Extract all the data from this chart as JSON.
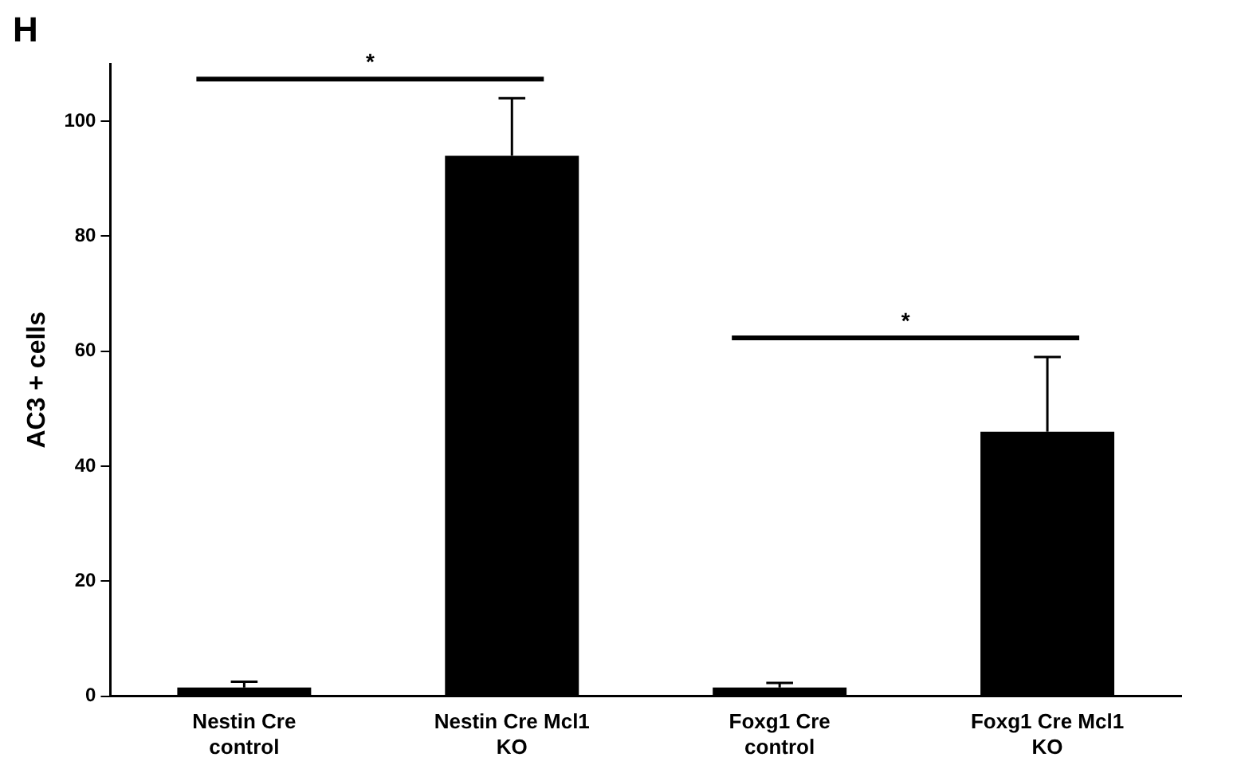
{
  "chart_data": {
    "type": "bar",
    "ylabel": "AC3 + cells",
    "categories": [
      "Nestin Cre control",
      "Nestin Cre Mcl1 KO",
      "Foxg1 Cre control",
      "Foxg1 Cre Mcl1 KO"
    ],
    "values": [
      1.5,
      94,
      1.5,
      46
    ],
    "errors": [
      1,
      10,
      0.8,
      13
    ],
    "color": "#000000",
    "ylim": [
      0,
      110
    ],
    "yticks": [
      0,
      20,
      40,
      60,
      80,
      100
    ],
    "grid": false,
    "legend": false,
    "annotations": [
      "H",
      "*",
      "*"
    ]
  }
}
